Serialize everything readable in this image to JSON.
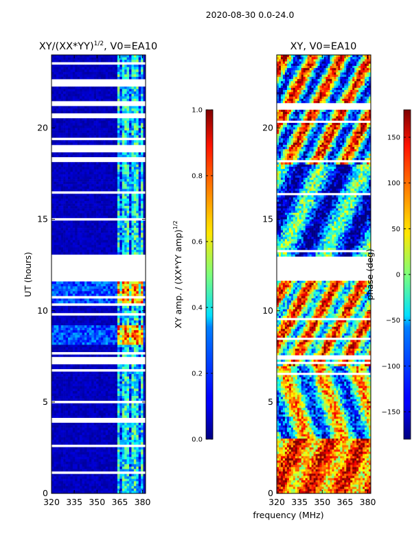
{
  "figure": {
    "suptitle": "2020-08-30 0.0-24.0",
    "shared_xlabel": "frequency (MHz)"
  },
  "chart_data": [
    {
      "type": "heatmap",
      "title": "XY/(XX*YY)",
      "title_exponent": "1/2",
      "title_suffix": ", V0=EA10",
      "xlabel": "",
      "ylabel": "UT (hours)",
      "xlim": [
        320,
        382
      ],
      "ylim": [
        0,
        24
      ],
      "xticks": [
        320,
        335,
        350,
        365,
        380
      ],
      "yticks": [
        0,
        5,
        10,
        15,
        20
      ],
      "colorbar": {
        "label": "XY amp. / (XX*YY amp)",
        "label_exponent": "1/2",
        "range": [
          0.0,
          1.0
        ],
        "ticks": [
          "0.0",
          "0.2",
          "0.4",
          "0.6",
          "0.8",
          "1.0"
        ],
        "colormap": "jet"
      },
      "blank_ranges_hours": [
        [
          11.6,
          13.0
        ],
        [
          22.3,
          22.6
        ],
        [
          21.2,
          21.5
        ],
        [
          20.6,
          20.8
        ],
        [
          7.1,
          7.3
        ]
      ],
      "bright_band_MHz": [
        364,
        381
      ],
      "bright_rows_hours": [
        [
          8.2,
          9.2
        ],
        [
          10.3,
          11.6
        ]
      ]
    },
    {
      "type": "heatmap",
      "title": "XY, V0=EA10",
      "xlabel": "frequency (MHz)",
      "ylabel": "",
      "xlim": [
        320,
        382
      ],
      "ylim": [
        0,
        24
      ],
      "xticks": [
        320,
        335,
        350,
        365,
        380
      ],
      "yticks": [
        0,
        5,
        10,
        15,
        20
      ],
      "colorbar": {
        "label": "phase (deg)",
        "range": [
          -180,
          180
        ],
        "ticks": [
          "150",
          "100",
          "50",
          "0",
          "−50",
          "−100",
          "−150"
        ],
        "colormap": "jet"
      },
      "blank_ranges_hours": [
        [
          11.6,
          13.0
        ],
        [
          21.0,
          21.3
        ],
        [
          7.3,
          7.5
        ]
      ]
    }
  ]
}
